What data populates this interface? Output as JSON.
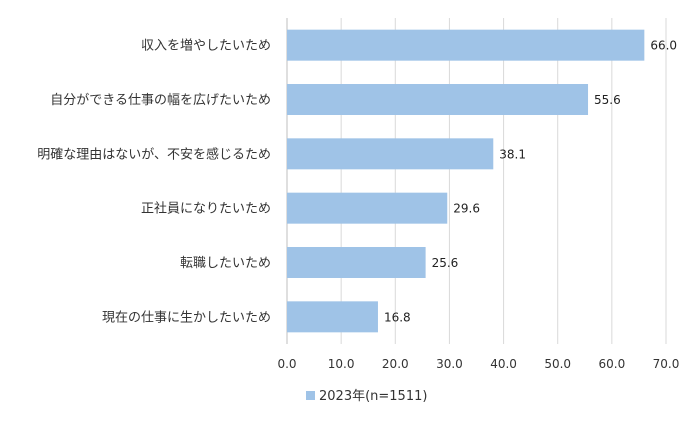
{
  "chart_data": {
    "type": "bar",
    "orientation": "horizontal",
    "categories": [
      "収入を増やしたいため",
      "自分ができる仕事の幅を広げたいため",
      "明確な理由はないが、不安を感じるため",
      "正社員になりたいため",
      "転職したいため",
      "現在の仕事に生かしたいため"
    ],
    "series": [
      {
        "name": "2023年(n=1511)",
        "values": [
          66.0,
          55.6,
          38.1,
          29.6,
          25.6,
          16.8
        ],
        "color": "#9fc3e7"
      }
    ],
    "value_labels": [
      "66.0",
      "55.6",
      "38.1",
      "29.6",
      "25.6",
      "16.8"
    ],
    "xlim": [
      0,
      70
    ],
    "xticks": [
      0,
      10,
      20,
      30,
      40,
      50,
      60,
      70
    ],
    "xtick_labels": [
      "0.0",
      "10.0",
      "20.0",
      "30.0",
      "40.0",
      "50.0",
      "60.0",
      "70.0"
    ],
    "grid": "vertical",
    "legend": "bottom-center",
    "title": "",
    "xlabel": "",
    "ylabel": ""
  }
}
